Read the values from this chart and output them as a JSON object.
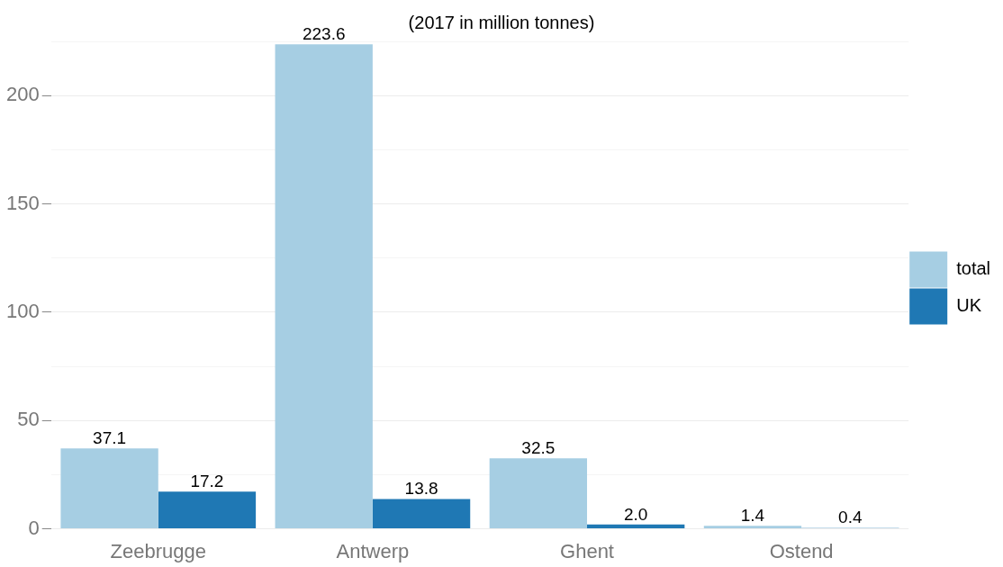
{
  "chart_data": {
    "type": "bar",
    "title": "(2017 in million tonnes)",
    "categories": [
      "Zeebrugge",
      "Antwerp",
      "Ghent",
      "Ostend"
    ],
    "series": [
      {
        "name": "total",
        "color": "#a6cee3",
        "values": [
          37.1,
          223.6,
          32.5,
          1.4
        ],
        "value_labels": [
          "37.1",
          "223.6",
          "32.5",
          "1.4"
        ]
      },
      {
        "name": "UK",
        "color": "#1f78b4",
        "values": [
          17.2,
          13.8,
          2.0,
          0.4
        ],
        "value_labels": [
          "17.2",
          "13.8",
          "2.0",
          "0.4"
        ]
      }
    ],
    "ylim": [
      0,
      225
    ],
    "yticks": [
      0,
      {
        "value": 25,
        "label": null
      },
      50,
      {
        "value": 75,
        "label": null
      },
      100,
      {
        "value": 125,
        "label": null
      },
      150,
      {
        "value": 175,
        "label": null
      },
      200,
      {
        "value": 225,
        "label": null
      }
    ],
    "grid": "y",
    "legend": "right"
  }
}
